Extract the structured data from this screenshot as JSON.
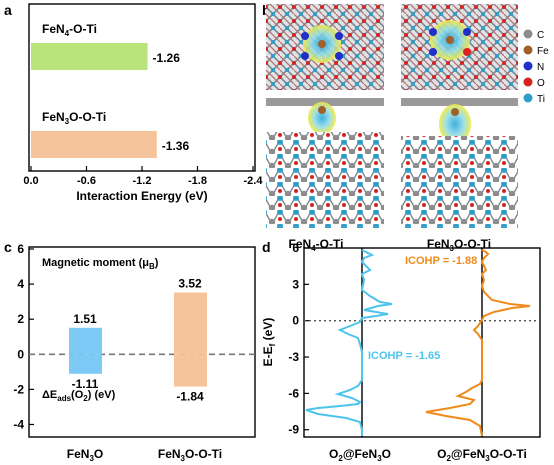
{
  "panels": {
    "a": {
      "letter": "a",
      "chart_data": {
        "type": "bar",
        "orientation": "horizontal",
        "categories": [
          "FeN4-O-Ti",
          "FeN3O-O-Ti"
        ],
        "values": [
          -1.26,
          -1.36
        ],
        "value_labels": [
          "-1.26",
          "-1.36"
        ],
        "colors": [
          "#b8e47a",
          "#f6c49a"
        ],
        "xlabel": "Interaction Energy (eV)",
        "xlim": [
          0.0,
          -2.4
        ],
        "xticks": [
          "0.0",
          "-0.6",
          "-1.2",
          "-1.8",
          "-2.4"
        ]
      }
    },
    "b": {
      "letter": "b",
      "captions": [
        "FeN4-O-Ti",
        "FeN3O-O-Ti"
      ],
      "legend": [
        {
          "label": "C",
          "color": "#8c8c8c"
        },
        {
          "label": "Fe",
          "color": "#a0602a"
        },
        {
          "label": "N",
          "color": "#1f2fc8"
        },
        {
          "label": "O",
          "color": "#d8231e"
        },
        {
          "label": "Ti",
          "color": "#2e9fc9"
        }
      ]
    },
    "c": {
      "letter": "c",
      "chart_data": {
        "type": "bar",
        "title": "Magnetic moment (μB)",
        "annotation": "ΔEads(O2) (eV)",
        "categories": [
          "FeN3O",
          "FeN3O-O-Ti"
        ],
        "series": [
          {
            "values": [
              1.51,
              3.52
            ],
            "labels": [
              "1.51",
              "3.52"
            ]
          },
          {
            "values": [
              -1.11,
              -1.84
            ],
            "labels": [
              "-1.11",
              "-1.84"
            ]
          }
        ],
        "colors": [
          "#7ccaf5",
          "#f6c49a"
        ],
        "ylim": [
          -4.6,
          6
        ],
        "yticks": [
          "-4",
          "-2",
          "0",
          "2",
          "4",
          "6"
        ],
        "reference_line": 0
      }
    },
    "d": {
      "letter": "d",
      "chart_data": {
        "type": "line",
        "ylabel": "E-Ef (eV)",
        "ylim": [
          -9.6,
          6
        ],
        "yticks": [
          "-9",
          "-6",
          "-3",
          "0",
          "3",
          "6"
        ],
        "fermi_level": 0,
        "series": [
          {
            "name": "O2@FeN3O",
            "color": "#4cc4ec",
            "annotation": "ICOHP = -1.65"
          },
          {
            "name": "O2@FeN3O-O-Ti",
            "color": "#f08a1a",
            "annotation": "ICOHP = -1.88"
          }
        ],
        "xlabels": [
          "O2@FeN3O",
          "O2@FeN3O-O-Ti"
        ]
      }
    }
  }
}
